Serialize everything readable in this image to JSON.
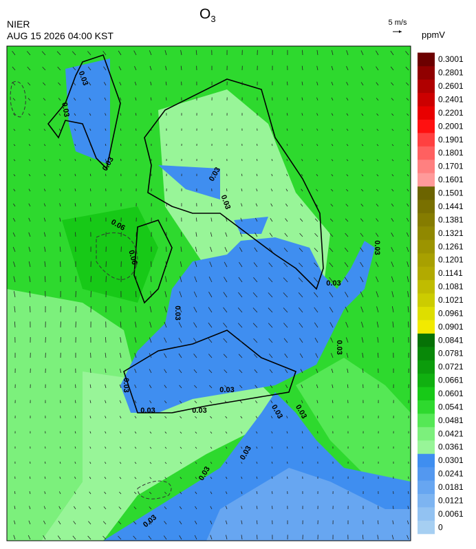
{
  "header": {
    "org": "NIER",
    "datetime": "AUG 15 2026 04:00 KST",
    "title": "O",
    "title_subscript": "3",
    "wind_reference": "5 m/s"
  },
  "colorbar": {
    "unit": "ppmV",
    "labels": [
      0,
      0.0061,
      0.0121,
      0.0181,
      0.0241,
      0.0301,
      0.0361,
      0.0421,
      0.0481,
      0.0541,
      0.0601,
      0.0661,
      0.0721,
      0.0781,
      0.0841,
      0.0901,
      0.0961,
      0.1021,
      0.1081,
      0.1141,
      0.1201,
      0.1261,
      0.1321,
      0.1381,
      0.1441,
      0.1501,
      0.1601,
      0.1701,
      0.1801,
      0.1901,
      0.2001,
      0.2201,
      0.2401,
      0.2601,
      0.2801,
      0.3001
    ],
    "colors": [
      "#a6cff2",
      "#92c2f2",
      "#7db4f1",
      "#67a6f1",
      "#5398f0",
      "#3f8ef0",
      "#98f598",
      "#7cf07c",
      "#55e855",
      "#2ed92e",
      "#17c917",
      "#10b010",
      "#0c9c0c",
      "#088808",
      "#067206",
      "#f2ea00",
      "#dede00",
      "#cccc00",
      "#c0bc00",
      "#b2aa00",
      "#a8a000",
      "#9c9400",
      "#908800",
      "#857c00",
      "#797000",
      "#6c6400",
      "#ff9a9a",
      "#ff8080",
      "#ff6060",
      "#ff4040",
      "#ff1010",
      "#e80000",
      "#cc0000",
      "#b00000",
      "#900000",
      "#6c0000"
    ]
  },
  "contour_labels": [
    "0.03",
    "0.03",
    "0.03",
    "0.06",
    "0.06",
    "0.03",
    "0.03",
    "0.03",
    "0.03",
    "0.03",
    "0.03",
    "0.03",
    "0.03",
    "0.03",
    "0.03",
    "0.03",
    "0.03",
    "0.03",
    "0.03",
    "0.03"
  ]
}
